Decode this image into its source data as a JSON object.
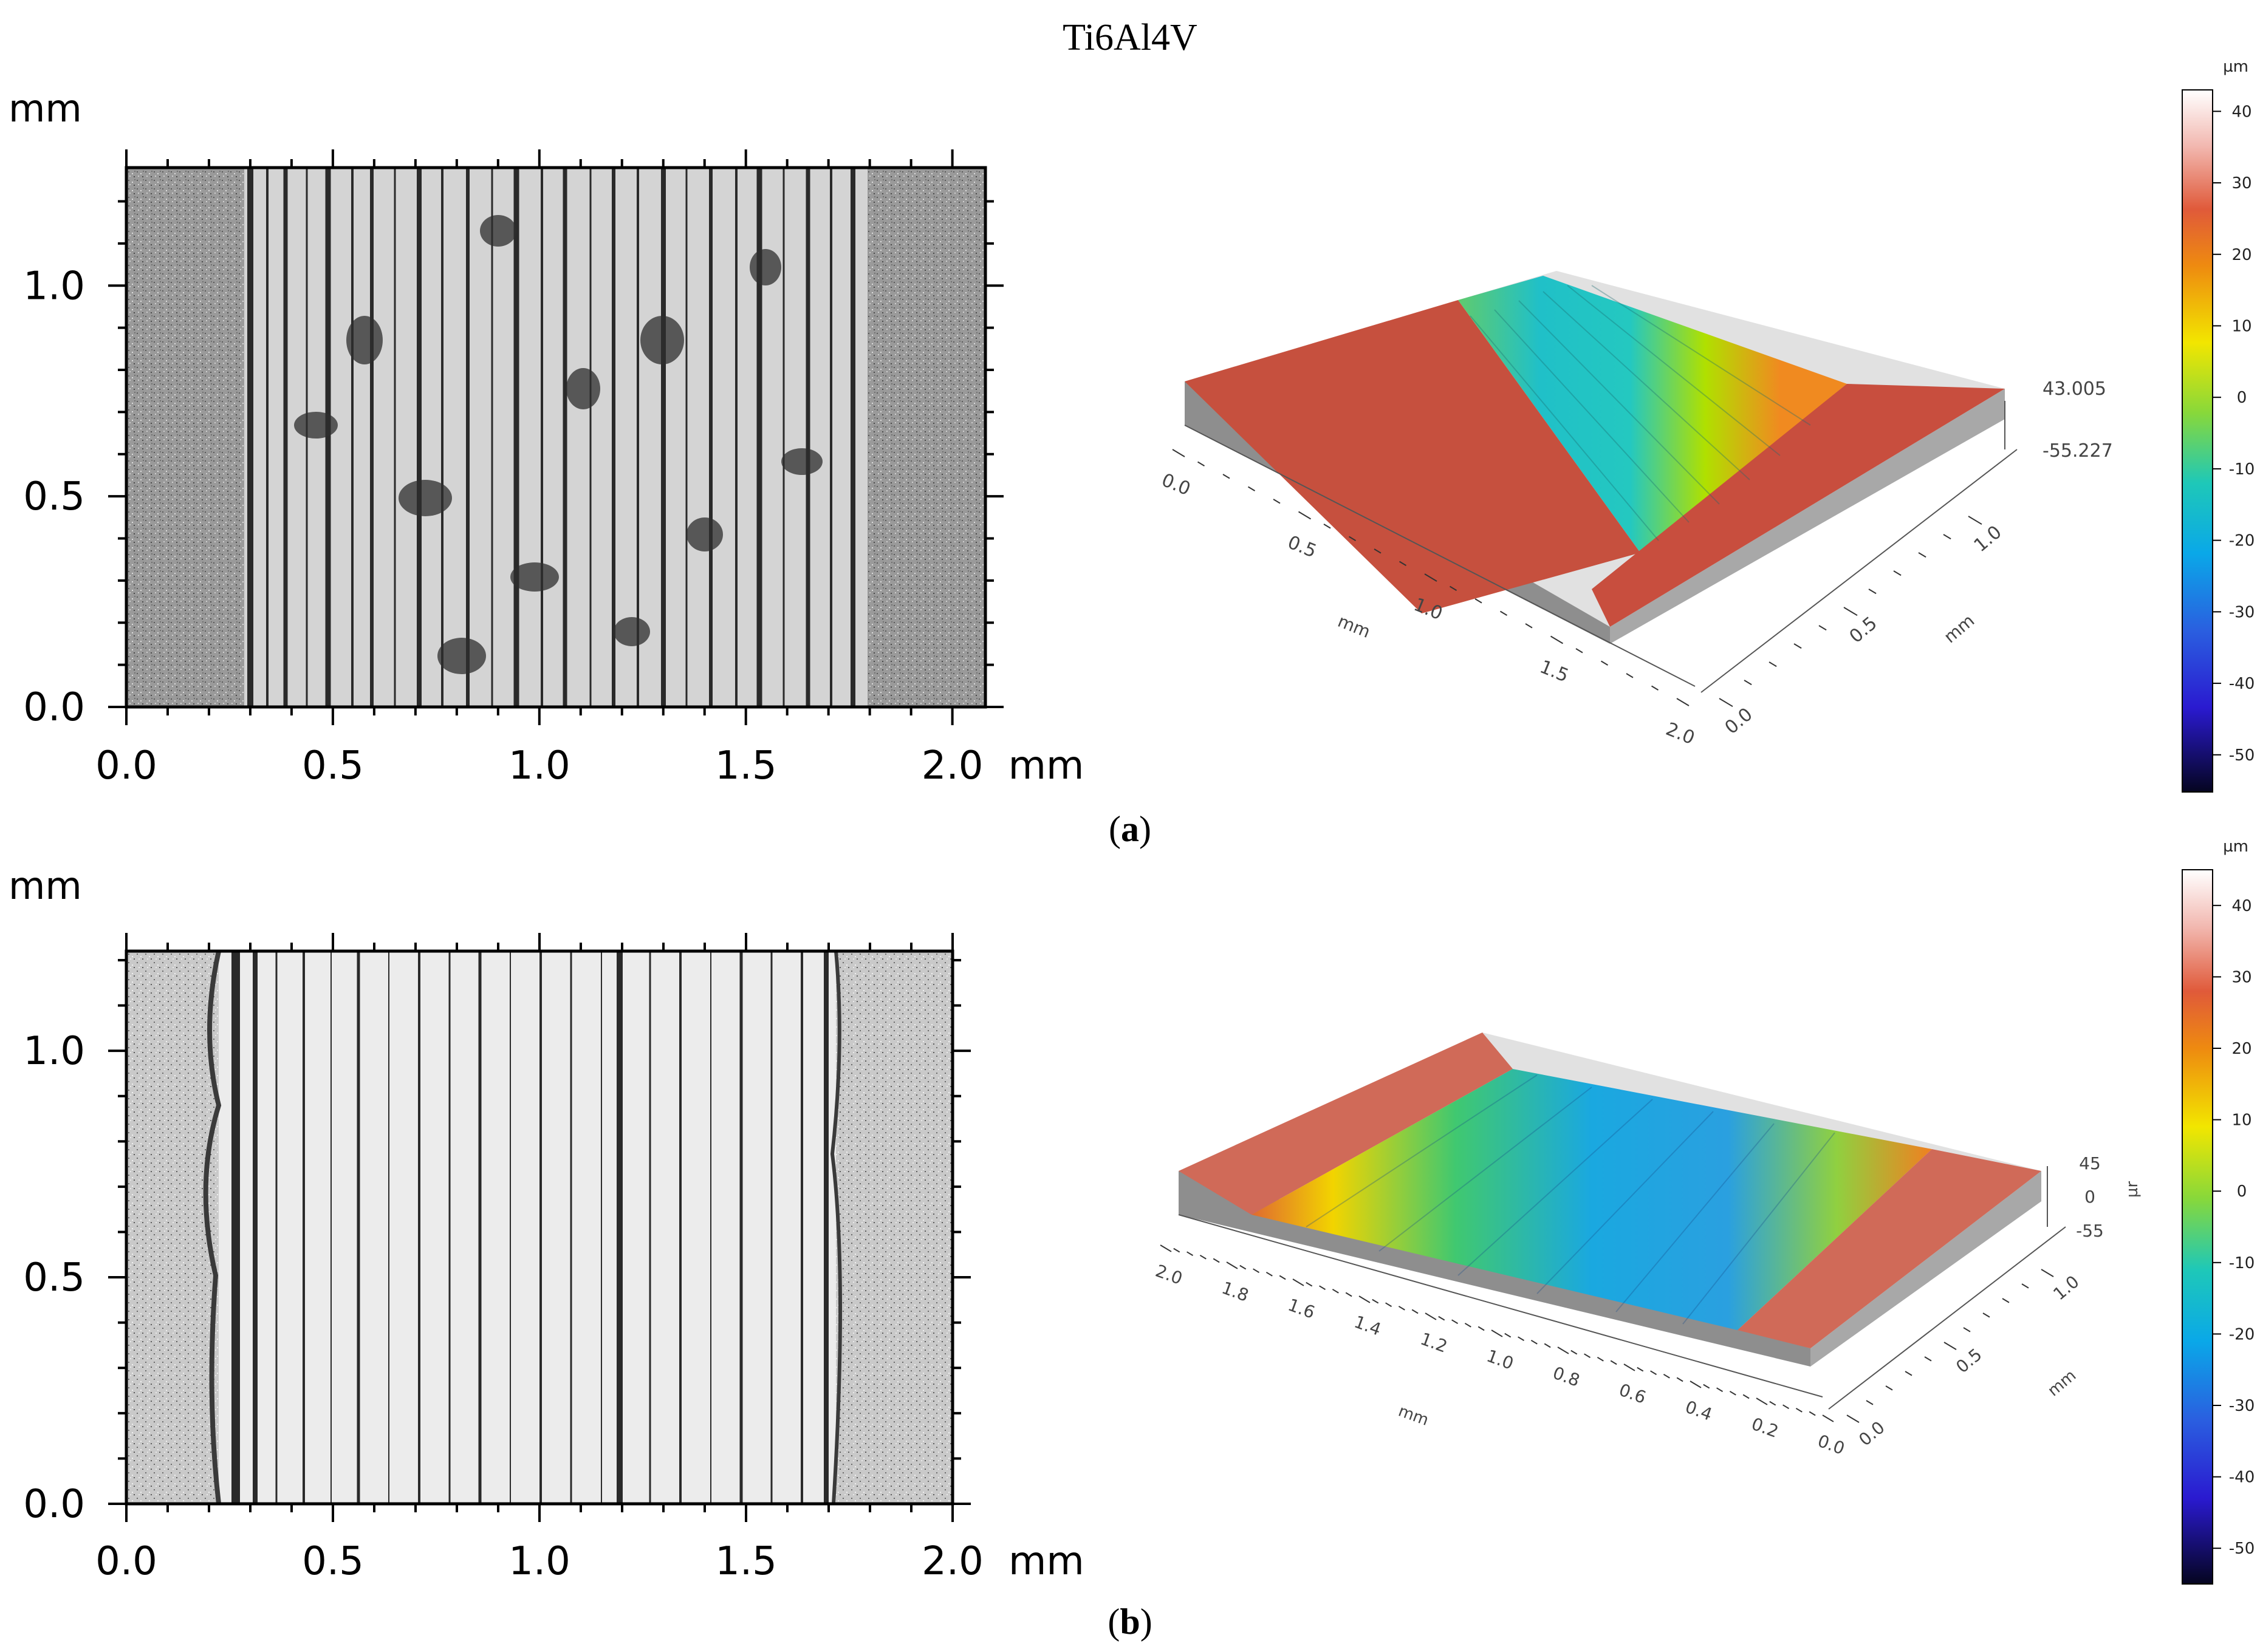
{
  "figure": {
    "title": "Ti6Al4V",
    "colors": {
      "unworn_surface": "#c84e3e",
      "frame": "#000000",
      "background": "#ffffff"
    }
  },
  "panels": [
    {
      "caption": "a",
      "micrograph": {
        "y_unit": "mm",
        "x_unit": "mm",
        "x_ticks": [
          "0.0",
          "0.5",
          "1.0",
          "1.5",
          "2.0"
        ],
        "y_ticks": [
          "0.0",
          "0.5",
          "1.0"
        ],
        "x_range": [
          0,
          2.08
        ],
        "y_range": [
          0,
          1.28
        ],
        "wear_track_mm": [
          0.28,
          1.79
        ]
      },
      "surface_3d": {
        "z_labels": [
          "43.005",
          "-55.227"
        ],
        "x_ticks": [
          "0.0",
          "0.5",
          "1.0",
          "1.5",
          "2.0"
        ],
        "x_unit": "mm",
        "y_ticks": [
          "0.0",
          "0.5",
          "1.0"
        ],
        "y_unit": "mm"
      },
      "colorbar": {
        "unit": "µm",
        "ticks": [
          "40",
          "30",
          "20",
          "10",
          "0",
          "-10",
          "-20",
          "-30",
          "-40",
          "-50"
        ],
        "range": [
          -55.2,
          43.0
        ]
      }
    },
    {
      "caption": "b",
      "micrograph": {
        "y_unit": "mm",
        "x_unit": "mm",
        "x_ticks": [
          "0.0",
          "0.5",
          "1.0",
          "1.5",
          "2.0"
        ],
        "y_ticks": [
          "0.0",
          "0.5",
          "1.0"
        ],
        "x_range": [
          0,
          2.0
        ],
        "y_range": [
          0,
          1.22
        ],
        "wear_track_mm": [
          0.23,
          1.74
        ]
      },
      "surface_3d": {
        "z_labels": [
          "45",
          "0",
          "-55"
        ],
        "z_unit": "µr",
        "x_ticks": [
          "2.0",
          "1.8",
          "1.6",
          "1.4",
          "1.2",
          "1.0",
          "0.8",
          "0.6",
          "0.4",
          "0.2",
          "0.0"
        ],
        "x_unit": "mm",
        "y_ticks": [
          "0.0",
          "0.5",
          "1.0"
        ],
        "y_unit": "mm"
      },
      "colorbar": {
        "unit": "µm",
        "ticks": [
          "40",
          "30",
          "20",
          "10",
          "0",
          "-10",
          "-20",
          "-30",
          "-40",
          "-50"
        ],
        "range": [
          -55.0,
          45.0
        ]
      }
    }
  ]
}
